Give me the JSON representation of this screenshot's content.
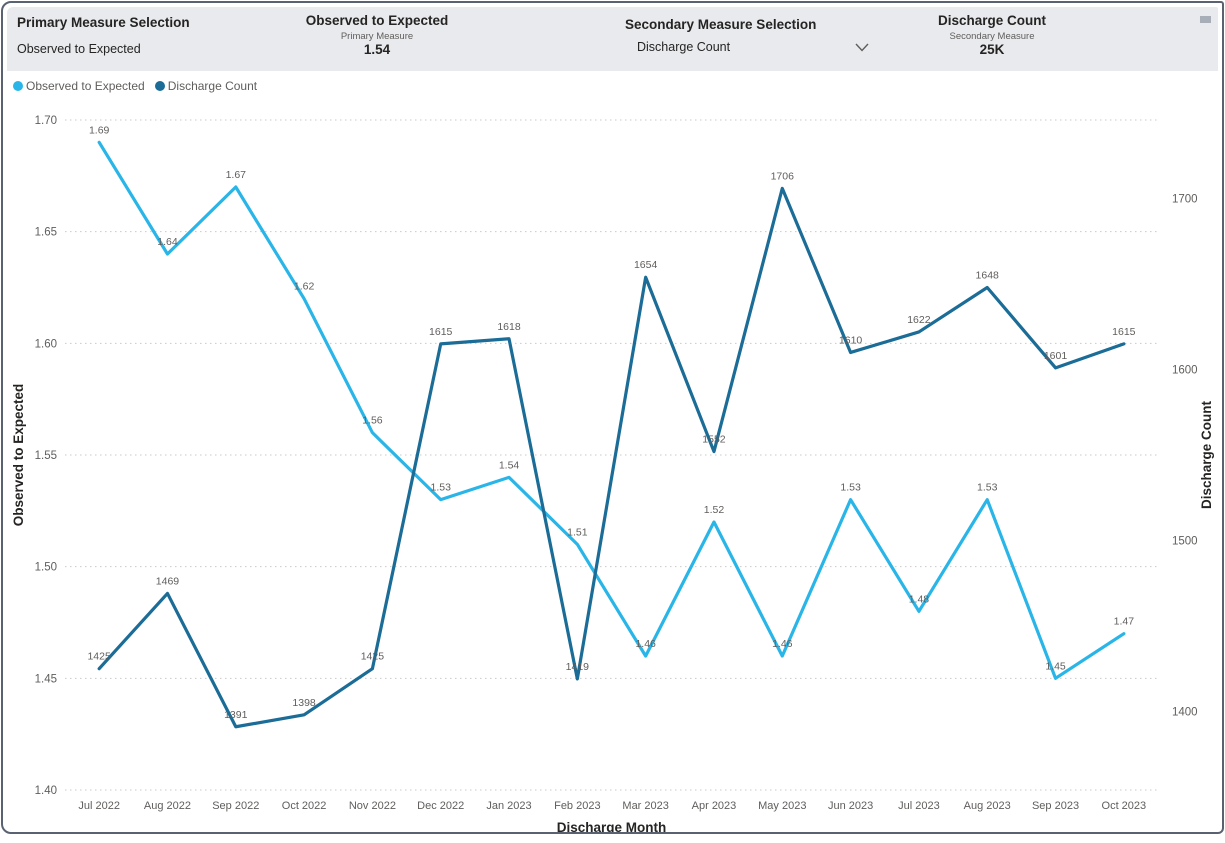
{
  "header": {
    "primary_slicer": {
      "title": "Primary Measure Selection",
      "value": "Observed to Expected"
    },
    "primary_card": {
      "title": "Observed to Expected",
      "subtitle": "Primary Measure",
      "value": "1.54"
    },
    "secondary_slicer": {
      "title": "Secondary Measure Selection",
      "value": "Discharge Count"
    },
    "secondary_card": {
      "title": "Discharge Count",
      "subtitle": "Secondary Measure",
      "value": "25K"
    }
  },
  "legend": [
    {
      "label": "Observed to Expected",
      "color": "#29b5e8"
    },
    {
      "label": "Discharge Count",
      "color": "#1b6c96"
    }
  ],
  "colors": {
    "accent_light_blue": "#29b5e8",
    "accent_dark_blue": "#1b6c96",
    "text_dark": "#252423",
    "text_grey": "#605e5c",
    "gridline": "#c9c9c9",
    "header_band": "#e8eaed",
    "frame_border": "#5a6272"
  },
  "chart_data": {
    "type": "line",
    "categories": [
      "Jul 2022",
      "Aug 2022",
      "Sep 2022",
      "Oct 2022",
      "Nov 2022",
      "Dec 2022",
      "Jan 2023",
      "Feb 2023",
      "Mar 2023",
      "Apr 2023",
      "May 2023",
      "Jun 2023",
      "Jul 2023",
      "Aug 2023",
      "Sep 2023",
      "Oct 2023"
    ],
    "series": [
      {
        "name": "Observed to Expected",
        "axis": "left",
        "color": "#29b5e8",
        "values": [
          1.69,
          1.64,
          1.67,
          1.62,
          1.56,
          1.53,
          1.54,
          1.51,
          1.46,
          1.52,
          1.46,
          1.53,
          1.48,
          1.53,
          1.45,
          1.47
        ],
        "label_decimals": 2
      },
      {
        "name": "Discharge Count",
        "axis": "right",
        "color": "#1b6c96",
        "values": [
          1425,
          1469,
          1391,
          1398,
          1425,
          1615,
          1618,
          1419,
          1654,
          1552,
          1706,
          1610,
          1622,
          1648,
          1601,
          1615
        ],
        "label_decimals": 0
      }
    ],
    "xlabel": "Discharge Month",
    "left_axis": {
      "title": "Observed to Expected",
      "tick_labels": [
        "1.70",
        "1.65",
        "1.60",
        "1.55",
        "1.50",
        "1.45",
        "1.40"
      ],
      "range": [
        1.4,
        1.7
      ]
    },
    "right_axis": {
      "title": "Discharge Count",
      "tick_labels": [
        "1700",
        "1600",
        "1500",
        "1400"
      ],
      "range": [
        1354,
        1746
      ]
    },
    "grid": "horizontal-dotted",
    "legend_position": "top-left"
  }
}
